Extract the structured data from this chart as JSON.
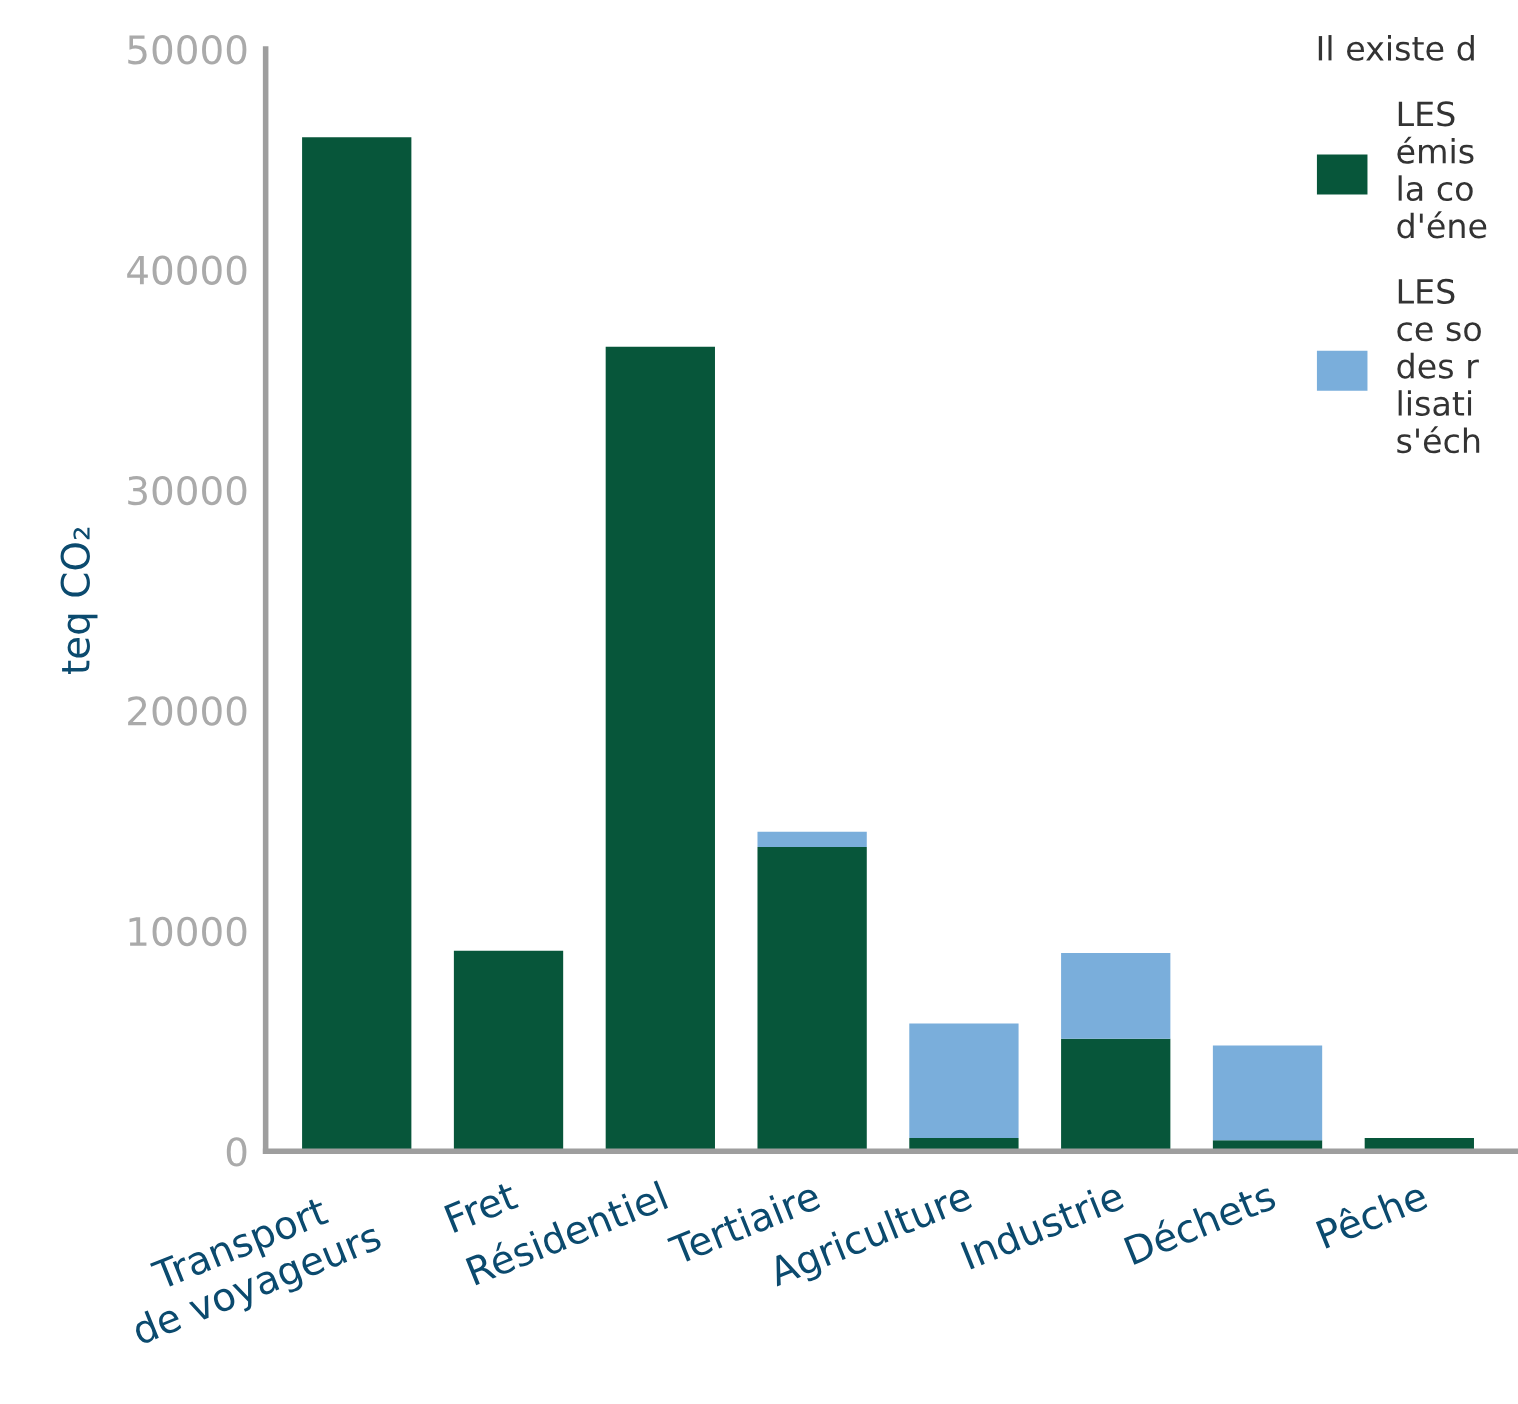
{
  "chart_data": {
    "type": "bar",
    "stacked": true,
    "ylabel": "teq CO₂",
    "legend_title": "Il existe d",
    "legend": "top right",
    "categories": [
      "Transport\nde voyageurs",
      "Fret",
      "Résidentiel",
      "Tertiaire",
      "Agriculture",
      "Industrie",
      "Déchets",
      "Pêche"
    ],
    "series": [
      {
        "name": "LES\némis\nla co\nd'éne",
        "color": "#07563a",
        "values": [
          46000,
          9100,
          36500,
          13800,
          600,
          5100,
          500,
          600
        ]
      },
      {
        "name": "LES\nce so\ndes r\nlisati\ns'éch",
        "color": "#7aaedb",
        "values": [
          0,
          0,
          0,
          700,
          5200,
          3900,
          4300,
          0
        ]
      }
    ],
    "ylim": [
      0,
      50000
    ],
    "yticks": [
      0,
      10000,
      20000,
      30000,
      40000,
      50000
    ],
    "grid": false
  }
}
